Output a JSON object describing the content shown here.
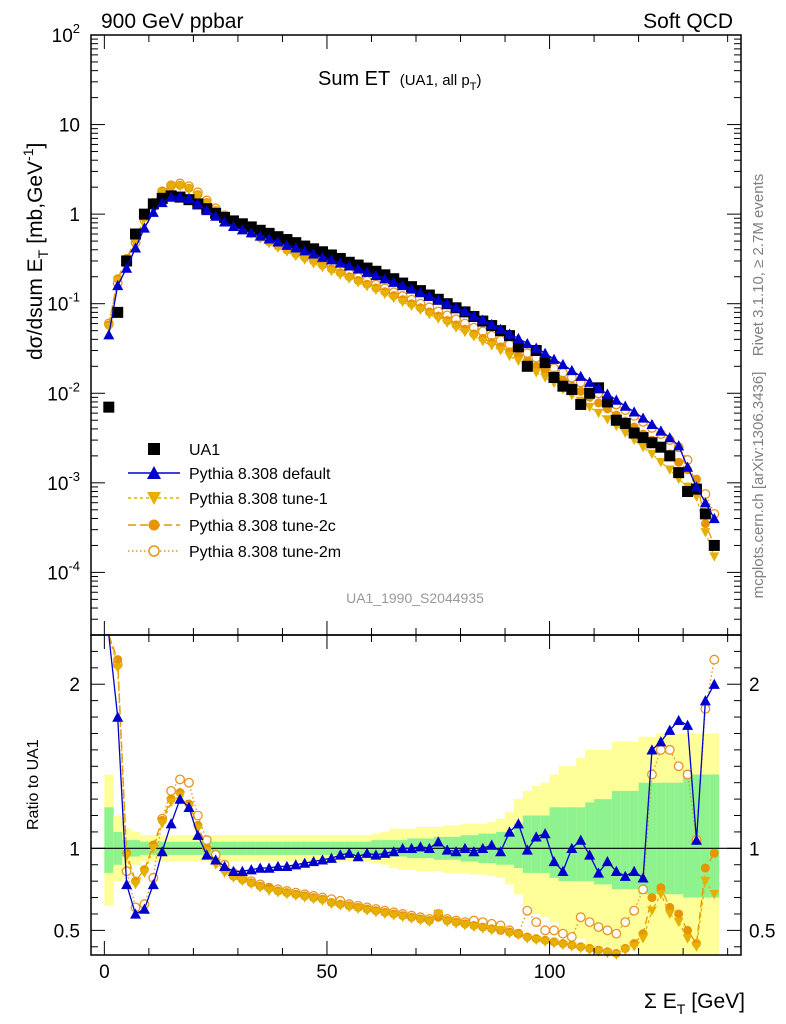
{
  "header": {
    "left": "900 GeV ppbar",
    "right": "Soft QCD"
  },
  "side_labels": {
    "rivet": "Rivet 3.1.10, ≥ 2.7M events",
    "mcplots": "mcplots.cern.ch [arXiv:1306.3436]"
  },
  "chart_data": {
    "type": "line",
    "title": "Sum ET",
    "title_sub": "(UA1, all p",
    "title_sub_index": "T",
    "title_sub_close": ")",
    "analysis_id": "UA1_1990_S2044935",
    "scale": "log",
    "ylabel_main": "dσ/dsum E",
    "ylabel_main_sub": "T",
    "ylabel_main_units": "[mb,GeV",
    "ylabel_main_units_sup": "-1",
    "ylabel_main_close": "]",
    "ylabel_ratio": "Ratio to UA1",
    "xlabel": "Σ E",
    "xlabel_sub": "T",
    "xlabel_units": "[GeV]",
    "xlim": [
      -3,
      143
    ],
    "ylim_main": [
      2e-05,
      100
    ],
    "ylim_ratio": [
      0.35,
      2.3
    ],
    "x_ticks": [
      "0",
      "50",
      "100"
    ],
    "y_ticks_main": [
      {
        "base": "10",
        "exp": "2"
      },
      {
        "base": "10",
        "exp": ""
      },
      {
        "base": "1",
        "exp": ""
      },
      {
        "base": "10",
        "exp": "-1"
      },
      {
        "base": "10",
        "exp": "-2"
      },
      {
        "base": "10",
        "exp": "-3"
      },
      {
        "base": "10",
        "exp": "-4"
      }
    ],
    "y_ticks_ratio": [
      "2",
      "1",
      "0.5"
    ],
    "legend_position": "lower-left",
    "colors": {
      "data": "#000000",
      "default": "#0000cc",
      "tune1": "#e6b000",
      "tune2c": "#e69500",
      "tune2m": "#e6951f",
      "band_inner": "#8ef38e",
      "band_outer": "#ffff99"
    },
    "x": [
      1,
      3,
      5,
      7,
      9,
      11,
      13,
      15,
      17,
      19,
      21,
      23,
      25,
      27,
      29,
      31,
      33,
      35,
      37,
      39,
      41,
      43,
      45,
      47,
      49,
      51,
      53,
      55,
      57,
      59,
      61,
      63,
      65,
      67,
      69,
      71,
      73,
      75,
      77,
      79,
      81,
      83,
      85,
      87,
      89,
      91,
      93,
      95,
      97,
      99,
      101,
      103,
      105,
      107,
      109,
      111,
      113,
      115,
      117,
      119,
      121,
      123,
      125,
      127,
      129,
      131,
      133,
      135,
      137
    ],
    "series": [
      {
        "name": "UA1",
        "values": [
          0.007,
          0.08,
          0.3,
          0.6,
          1.0,
          1.3,
          1.5,
          1.6,
          1.55,
          1.45,
          1.3,
          1.15,
          1.02,
          0.92,
          0.84,
          0.78,
          0.72,
          0.66,
          0.61,
          0.56,
          0.52,
          0.48,
          0.44,
          0.41,
          0.38,
          0.35,
          0.32,
          0.29,
          0.27,
          0.25,
          0.23,
          0.21,
          0.19,
          0.17,
          0.155,
          0.14,
          0.125,
          0.112,
          0.1,
          0.09,
          0.081,
          0.072,
          0.064,
          0.057,
          0.05,
          0.044,
          0.033,
          0.02,
          0.03,
          0.022,
          0.015,
          0.012,
          0.011,
          0.0075,
          0.01,
          0.0115,
          0.008,
          0.005,
          0.0046,
          0.0036,
          0.0032,
          0.0028,
          0.0025,
          0.002,
          0.0013,
          0.0008,
          0.00085,
          0.00045,
          0.0002
        ]
      },
      {
        "name": "Pythia 8.308 default",
        "values": [
          0.045,
          0.16,
          0.25,
          0.42,
          0.7,
          1.05,
          1.35,
          1.55,
          1.57,
          1.5,
          1.3,
          1.1,
          0.95,
          0.82,
          0.73,
          0.67,
          0.62,
          0.57,
          0.53,
          0.49,
          0.45,
          0.42,
          0.39,
          0.36,
          0.33,
          0.31,
          0.285,
          0.265,
          0.245,
          0.225,
          0.207,
          0.19,
          0.174,
          0.16,
          0.146,
          0.133,
          0.121,
          0.11,
          0.1,
          0.09,
          0.082,
          0.073,
          0.066,
          0.059,
          0.052,
          0.046,
          0.041,
          0.036,
          0.032,
          0.028,
          0.024,
          0.021,
          0.018,
          0.0155,
          0.0133,
          0.0114,
          0.0098,
          0.0084,
          0.0072,
          0.0062,
          0.0053,
          0.0045,
          0.0038,
          0.0032,
          0.0026,
          0.0015,
          0.0009,
          0.0006,
          0.0004
        ]
      },
      {
        "name": "Pythia 8.308 tune-1",
        "values": [
          0.055,
          0.18,
          0.3,
          0.5,
          0.9,
          1.3,
          1.75,
          2.0,
          2.05,
          1.9,
          1.6,
          1.3,
          1.08,
          0.9,
          0.78,
          0.68,
          0.6,
          0.53,
          0.47,
          0.42,
          0.38,
          0.34,
          0.31,
          0.28,
          0.255,
          0.23,
          0.21,
          0.19,
          0.172,
          0.156,
          0.142,
          0.128,
          0.115,
          0.104,
          0.094,
          0.085,
          0.076,
          0.068,
          0.061,
          0.054,
          0.048,
          0.043,
          0.038,
          0.034,
          0.03,
          0.026,
          0.023,
          0.02,
          0.017,
          0.015,
          0.013,
          0.011,
          0.0095,
          0.0082,
          0.007,
          0.006,
          0.0051,
          0.0043,
          0.0036,
          0.003,
          0.0025,
          0.0021,
          0.0017,
          0.0014,
          0.0011,
          0.0009,
          0.0007,
          0.00028,
          0.00015
        ]
      },
      {
        "name": "Pythia 8.308 tune-2c",
        "values": [
          0.058,
          0.19,
          0.32,
          0.52,
          0.92,
          1.35,
          1.8,
          2.05,
          2.1,
          1.95,
          1.65,
          1.35,
          1.1,
          0.92,
          0.8,
          0.7,
          0.62,
          0.55,
          0.49,
          0.44,
          0.4,
          0.36,
          0.33,
          0.3,
          0.27,
          0.245,
          0.222,
          0.2,
          0.182,
          0.165,
          0.15,
          0.136,
          0.123,
          0.111,
          0.1,
          0.09,
          0.081,
          0.073,
          0.065,
          0.058,
          0.052,
          0.046,
          0.041,
          0.037,
          0.033,
          0.029,
          0.026,
          0.023,
          0.02,
          0.018,
          0.016,
          0.014,
          0.012,
          0.0105,
          0.009,
          0.0078,
          0.0067,
          0.0057,
          0.0049,
          0.0042,
          0.0035,
          0.003,
          0.0025,
          0.0021,
          0.0017,
          0.0014,
          0.0011,
          0.00035,
          0.0002
        ]
      },
      {
        "name": "Pythia 8.308 tune-2m",
        "values": [
          0.06,
          0.17,
          0.3,
          0.48,
          0.86,
          1.3,
          1.8,
          2.1,
          2.2,
          2.05,
          1.75,
          1.42,
          1.16,
          0.97,
          0.84,
          0.74,
          0.66,
          0.59,
          0.53,
          0.48,
          0.43,
          0.39,
          0.355,
          0.32,
          0.29,
          0.265,
          0.24,
          0.218,
          0.198,
          0.18,
          0.163,
          0.148,
          0.134,
          0.122,
          0.111,
          0.1,
          0.091,
          0.082,
          0.074,
          0.067,
          0.06,
          0.054,
          0.049,
          0.044,
          0.039,
          0.035,
          0.031,
          0.028,
          0.025,
          0.022,
          0.019,
          0.017,
          0.015,
          0.0132,
          0.0115,
          0.01,
          0.0087,
          0.0075,
          0.0065,
          0.0056,
          0.0048,
          0.0041,
          0.0035,
          0.003,
          0.0025,
          0.0018,
          0.0009,
          0.00075,
          0.00045
        ]
      }
    ],
    "ratio": {
      "default": [
        6.5,
        1.8,
        0.78,
        0.6,
        0.63,
        0.78,
        0.98,
        1.15,
        1.3,
        1.25,
        1.08,
        0.96,
        0.93,
        0.89,
        0.86,
        0.86,
        0.87,
        0.88,
        0.88,
        0.89,
        0.89,
        0.9,
        0.91,
        0.92,
        0.93,
        0.94,
        0.96,
        0.97,
        0.95,
        0.97,
        0.96,
        0.97,
        0.98,
        1.0,
        1.0,
        1.01,
        1.0,
        1.04,
        0.99,
        0.98,
        1.0,
        0.98,
        1.0,
        1.02,
        0.98,
        1.1,
        1.15,
        0.99,
        1.07,
        1.09,
        0.92,
        0.86,
        1.0,
        1.05,
        0.96,
        0.85,
        0.92,
        0.86,
        0.83,
        0.86,
        0.82,
        1.6,
        1.65,
        1.72,
        1.78,
        1.75,
        1.05,
        1.9,
        2.0
      ],
      "tune1": [
        6.0,
        2.1,
        0.95,
        0.78,
        0.85,
        1.0,
        1.15,
        1.28,
        1.32,
        1.25,
        1.12,
        0.98,
        0.9,
        0.85,
        0.82,
        0.8,
        0.78,
        0.76,
        0.74,
        0.73,
        0.72,
        0.71,
        0.7,
        0.69,
        0.68,
        0.66,
        0.65,
        0.64,
        0.63,
        0.62,
        0.61,
        0.6,
        0.59,
        0.58,
        0.57,
        0.56,
        0.55,
        0.6,
        0.55,
        0.54,
        0.53,
        0.52,
        0.51,
        0.5,
        0.5,
        0.48,
        0.47,
        0.45,
        0.44,
        0.43,
        0.42,
        0.41,
        0.4,
        0.39,
        0.38,
        0.37,
        0.36,
        0.35,
        0.38,
        0.4,
        0.45,
        0.62,
        0.72,
        0.6,
        0.55,
        0.45,
        0.4,
        0.8,
        0.72
      ],
      "tune2c": [
        6.2,
        2.15,
        0.97,
        0.8,
        0.87,
        1.02,
        1.17,
        1.3,
        1.34,
        1.27,
        1.14,
        1.0,
        0.92,
        0.87,
        0.83,
        0.81,
        0.79,
        0.77,
        0.76,
        0.74,
        0.73,
        0.72,
        0.71,
        0.7,
        0.69,
        0.67,
        0.66,
        0.65,
        0.64,
        0.63,
        0.62,
        0.61,
        0.6,
        0.59,
        0.58,
        0.57,
        0.56,
        0.58,
        0.56,
        0.55,
        0.54,
        0.53,
        0.52,
        0.51,
        0.5,
        0.49,
        0.48,
        0.46,
        0.45,
        0.44,
        0.43,
        0.42,
        0.41,
        0.4,
        0.39,
        0.38,
        0.37,
        0.36,
        0.39,
        0.42,
        0.48,
        0.7,
        0.76,
        0.64,
        0.6,
        0.5,
        0.42,
        0.88,
        0.97
      ],
      "tune2m": [
        6.4,
        2.12,
        0.86,
        0.64,
        0.66,
        0.82,
        1.18,
        1.35,
        1.42,
        1.4,
        1.2,
        1.05,
        0.96,
        0.9,
        0.85,
        0.82,
        0.8,
        0.78,
        0.76,
        0.75,
        0.74,
        0.73,
        0.72,
        0.71,
        0.7,
        0.69,
        0.68,
        0.66,
        0.65,
        0.64,
        0.63,
        0.62,
        0.61,
        0.6,
        0.59,
        0.58,
        0.57,
        0.6,
        0.57,
        0.56,
        0.55,
        0.56,
        0.55,
        0.54,
        0.53,
        0.5,
        0.48,
        0.62,
        0.55,
        0.5,
        0.5,
        0.48,
        0.46,
        0.58,
        0.55,
        0.52,
        0.5,
        0.48,
        0.55,
        0.62,
        0.75,
        1.45,
        1.6,
        1.6,
        1.5,
        1.45,
        1.05,
        1.85,
        2.15
      ]
    },
    "bands": {
      "inner": [
        [
          0.85,
          1.25
        ],
        [
          0.9,
          1.1
        ],
        [
          0.95,
          1.05
        ],
        [
          0.95,
          1.05
        ],
        [
          0.96,
          1.04
        ],
        [
          0.96,
          1.04
        ],
        [
          0.96,
          1.04
        ],
        [
          0.96,
          1.04
        ],
        [
          0.96,
          1.04
        ],
        [
          0.96,
          1.04
        ],
        [
          0.96,
          1.04
        ],
        [
          0.96,
          1.04
        ],
        [
          0.96,
          1.04
        ],
        [
          0.96,
          1.04
        ],
        [
          0.96,
          1.04
        ],
        [
          0.96,
          1.04
        ],
        [
          0.96,
          1.04
        ],
        [
          0.96,
          1.04
        ],
        [
          0.96,
          1.04
        ],
        [
          0.96,
          1.04
        ],
        [
          0.96,
          1.04
        ],
        [
          0.96,
          1.04
        ],
        [
          0.96,
          1.04
        ],
        [
          0.96,
          1.04
        ],
        [
          0.96,
          1.04
        ],
        [
          0.96,
          1.04
        ],
        [
          0.96,
          1.04
        ],
        [
          0.96,
          1.04
        ],
        [
          0.96,
          1.04
        ],
        [
          0.96,
          1.04
        ],
        [
          0.95,
          1.05
        ],
        [
          0.95,
          1.05
        ],
        [
          0.95,
          1.05
        ],
        [
          0.95,
          1.05
        ],
        [
          0.94,
          1.06
        ],
        [
          0.94,
          1.06
        ],
        [
          0.94,
          1.06
        ],
        [
          0.93,
          1.07
        ],
        [
          0.93,
          1.07
        ],
        [
          0.93,
          1.07
        ],
        [
          0.92,
          1.08
        ],
        [
          0.92,
          1.08
        ],
        [
          0.91,
          1.09
        ],
        [
          0.91,
          1.09
        ],
        [
          0.9,
          1.1
        ],
        [
          0.9,
          1.1
        ],
        [
          0.88,
          1.15
        ],
        [
          0.85,
          1.2
        ],
        [
          0.85,
          1.2
        ],
        [
          0.85,
          1.2
        ],
        [
          0.82,
          1.25
        ],
        [
          0.8,
          1.25
        ],
        [
          0.8,
          1.25
        ],
        [
          0.8,
          1.25
        ],
        [
          0.8,
          1.28
        ],
        [
          0.78,
          1.3
        ],
        [
          0.78,
          1.3
        ],
        [
          0.75,
          1.35
        ],
        [
          0.75,
          1.35
        ],
        [
          0.75,
          1.35
        ],
        [
          0.72,
          1.4
        ],
        [
          0.72,
          1.4
        ],
        [
          0.72,
          1.4
        ],
        [
          0.72,
          1.4
        ],
        [
          0.72,
          1.4
        ],
        [
          0.7,
          1.45
        ],
        [
          0.7,
          1.45
        ],
        [
          0.7,
          1.45
        ],
        [
          0.7,
          1.45
        ]
      ],
      "outer": [
        [
          0.65,
          1.45
        ],
        [
          0.8,
          1.2
        ],
        [
          0.88,
          1.12
        ],
        [
          0.9,
          1.1
        ],
        [
          0.92,
          1.08
        ],
        [
          0.92,
          1.08
        ],
        [
          0.92,
          1.08
        ],
        [
          0.92,
          1.08
        ],
        [
          0.92,
          1.08
        ],
        [
          0.92,
          1.08
        ],
        [
          0.92,
          1.08
        ],
        [
          0.92,
          1.08
        ],
        [
          0.92,
          1.08
        ],
        [
          0.92,
          1.08
        ],
        [
          0.92,
          1.08
        ],
        [
          0.92,
          1.08
        ],
        [
          0.92,
          1.08
        ],
        [
          0.92,
          1.08
        ],
        [
          0.92,
          1.08
        ],
        [
          0.92,
          1.08
        ],
        [
          0.92,
          1.08
        ],
        [
          0.92,
          1.08
        ],
        [
          0.92,
          1.08
        ],
        [
          0.92,
          1.08
        ],
        [
          0.92,
          1.08
        ],
        [
          0.92,
          1.08
        ],
        [
          0.92,
          1.08
        ],
        [
          0.92,
          1.08
        ],
        [
          0.92,
          1.08
        ],
        [
          0.92,
          1.08
        ],
        [
          0.91,
          1.09
        ],
        [
          0.9,
          1.1
        ],
        [
          0.88,
          1.12
        ],
        [
          0.87,
          1.12
        ],
        [
          0.87,
          1.12
        ],
        [
          0.86,
          1.13
        ],
        [
          0.86,
          1.13
        ],
        [
          0.86,
          1.13
        ],
        [
          0.85,
          1.14
        ],
        [
          0.85,
          1.14
        ],
        [
          0.85,
          1.15
        ],
        [
          0.84,
          1.15
        ],
        [
          0.84,
          1.15
        ],
        [
          0.83,
          1.16
        ],
        [
          0.82,
          1.18
        ],
        [
          0.78,
          1.22
        ],
        [
          0.72,
          1.3
        ],
        [
          0.65,
          1.35
        ],
        [
          0.6,
          1.38
        ],
        [
          0.58,
          1.4
        ],
        [
          0.55,
          1.45
        ],
        [
          0.5,
          1.5
        ],
        [
          0.48,
          1.5
        ],
        [
          0.45,
          1.55
        ],
        [
          0.4,
          1.6
        ],
        [
          0.4,
          1.6
        ],
        [
          0.4,
          1.6
        ],
        [
          0.38,
          1.65
        ],
        [
          0.38,
          1.65
        ],
        [
          0.38,
          1.65
        ],
        [
          0.35,
          1.68
        ],
        [
          0.35,
          1.68
        ],
        [
          0.35,
          1.7
        ],
        [
          0.35,
          1.7
        ],
        [
          0.35,
          1.7
        ],
        [
          0.35,
          1.7
        ],
        [
          0.35,
          1.7
        ],
        [
          0.35,
          1.7
        ],
        [
          0.35,
          1.7
        ]
      ]
    }
  }
}
